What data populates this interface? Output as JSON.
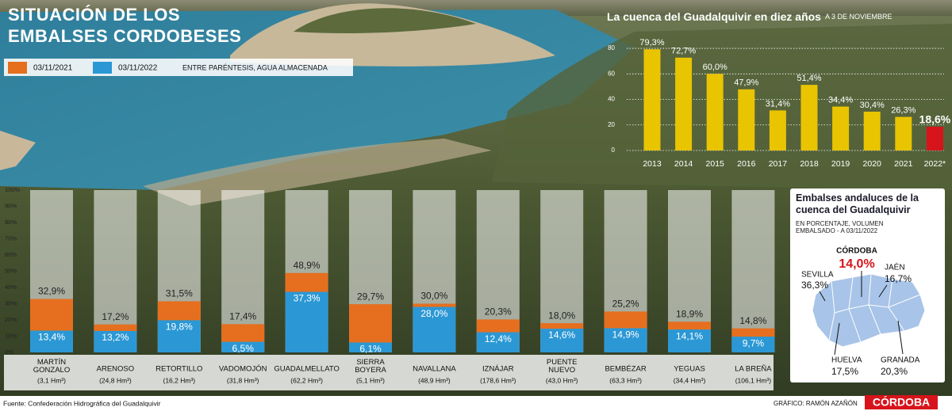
{
  "chart_data": [
    {
      "type": "overlaid_bar",
      "title": "SITUACIÓN DE LOS\nEMBALSES CORDOBESES",
      "note": "ENTRE PARÉNTESIS, AGUA ALMACENADA",
      "categories": [
        "MARTÍN\nGONZALO",
        "ARENOSO",
        "RETORTILLO",
        "VADOMOJÓN",
        "GUADALMELLATO",
        "SIERRA\nBOYERA",
        "NAVALLANA",
        "IZNÁJAR",
        "PUENTE\nNUEVO",
        "BEMBÉZAR",
        "YEGUAS",
        "LA BREÑA"
      ],
      "capacities": [
        "(3,1 Hm³)",
        "(24,8 Hm³)",
        "(16,2 Hm³)",
        "(31,8 Hm³)",
        "(62,2 Hm³)",
        "(5,1 Hm³)",
        "(48,9 Hm³)",
        "(178,6 Hm³)",
        "(43,0 Hm³)",
        "(63,3 Hm³)",
        "(34,4 Hm³)",
        "(106,1 Hm³)"
      ],
      "series": [
        {
          "name": "03/11/2021",
          "color": "#e56f1f",
          "values": [
            32.9,
            17.2,
            31.5,
            17.4,
            48.9,
            29.7,
            30.0,
            20.3,
            18.0,
            25.2,
            18.9,
            14.8
          ],
          "value_labels": [
            "32,9%",
            "17,2%",
            "31,5%",
            "17,4%",
            "48,9%",
            "29,7%",
            "30,0%",
            "20,3%",
            "18,0%",
            "25,2%",
            "18,9%",
            "14,8%"
          ]
        },
        {
          "name": "03/11/2022",
          "color": "#2b98d5",
          "values": [
            13.4,
            13.2,
            19.8,
            6.5,
            37.3,
            6.1,
            28.0,
            12.4,
            14.6,
            14.9,
            14.1,
            9.7
          ],
          "value_labels": [
            "13,4%",
            "13,2%",
            "19,8%",
            "6,5%",
            "37,3%",
            "6,1%",
            "28,0%",
            "12,4%",
            "14,6%",
            "14,9%",
            "14,1%",
            "9,7%"
          ]
        }
      ],
      "ylim": [
        0,
        100
      ],
      "yticks": [
        {
          "value": 0,
          "label": "0%"
        },
        {
          "value": 10,
          "label": "10%"
        },
        {
          "value": 20,
          "label": "20%"
        },
        {
          "value": 30,
          "label": "30%"
        },
        {
          "value": 40,
          "label": "40%"
        },
        {
          "value": 50,
          "label": "50%"
        },
        {
          "value": 60,
          "label": "60%"
        },
        {
          "value": 70,
          "label": "70%"
        },
        {
          "value": 80,
          "label": "80%"
        },
        {
          "value": 90,
          "label": "90%"
        },
        {
          "value": 100,
          "label": "100%"
        }
      ]
    },
    {
      "type": "bar",
      "title": "La cuenca del Guadalquivir en diez años",
      "subtitle": "A 3 DE NOVIEMBRE",
      "categories": [
        "2013",
        "2014",
        "2015",
        "2016",
        "2017",
        "2018",
        "2019",
        "2020",
        "2021",
        "2022*"
      ],
      "values": [
        79.3,
        72.7,
        60.0,
        47.9,
        31.4,
        51.4,
        34.4,
        30.4,
        26.3,
        18.6
      ],
      "value_labels": [
        "79,3%",
        "72,7%",
        "60,0%",
        "47,9%",
        "31,4%",
        "51,4%",
        "34,4%",
        "30,4%",
        "26,3%",
        "18,6%"
      ],
      "colors": [
        "#e9c400",
        "#e9c400",
        "#e9c400",
        "#e9c400",
        "#e9c400",
        "#e9c400",
        "#e9c400",
        "#e9c400",
        "#e9c400",
        "#d7141b"
      ],
      "ylim": [
        0,
        85
      ],
      "yticks": [
        0,
        20,
        40,
        60,
        80
      ],
      "grid": true
    }
  ],
  "map": {
    "title": "Embalses andaluces de la\ncuenca del Guadalquivir",
    "subtitle": "EN PORCENTAJE, VOLUMEN\nEMBALSADO - A 03/11/2022",
    "regions": [
      {
        "name": "CÓRDOBA",
        "value": "14,0%"
      },
      {
        "name": "SEVILLA",
        "value": "36,3%"
      },
      {
        "name": "JAÉN",
        "value": "16,7%"
      },
      {
        "name": "HUELVA",
        "value": "17,5%"
      },
      {
        "name": "GRANADA",
        "value": "20,3%"
      }
    ]
  },
  "footer": {
    "source": "Fuente: Confederación Hidrográfica del Guadalquivir",
    "credit": "GRÁFICO: RAMÓN AZAÑÓN",
    "brand": "CÓRDOBA"
  }
}
